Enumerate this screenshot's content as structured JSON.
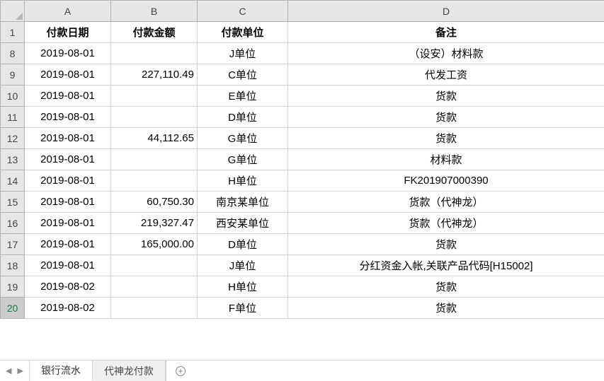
{
  "columns": [
    "A",
    "B",
    "C",
    "D"
  ],
  "header_row_index": "1",
  "headers": {
    "A": "付款日期",
    "B": "付款金额",
    "C": "付款单位",
    "D": "备注"
  },
  "rows": [
    {
      "idx": "8",
      "A": "2019-08-01",
      "B": "",
      "C": "J单位",
      "D": "（设安）材料款"
    },
    {
      "idx": "9",
      "A": "2019-08-01",
      "B": "227,110.49",
      "C": "C单位",
      "D": "代发工资"
    },
    {
      "idx": "10",
      "A": "2019-08-01",
      "B": "",
      "C": "E单位",
      "D": "货款"
    },
    {
      "idx": "11",
      "A": "2019-08-01",
      "B": "",
      "C": "D单位",
      "D": "货款"
    },
    {
      "idx": "12",
      "A": "2019-08-01",
      "B": "44,112.65",
      "C": "G单位",
      "D": "货款"
    },
    {
      "idx": "13",
      "A": "2019-08-01",
      "B": "",
      "C": "G单位",
      "D": "材料款"
    },
    {
      "idx": "14",
      "A": "2019-08-01",
      "B": "",
      "C": "H单位",
      "D": "FK201907000390"
    },
    {
      "idx": "15",
      "A": "2019-08-01",
      "B": "60,750.30",
      "C": "南京某单位",
      "D": "货款（代神龙）"
    },
    {
      "idx": "16",
      "A": "2019-08-01",
      "B": "219,327.47",
      "C": "西安某单位",
      "D": "货款（代神龙）"
    },
    {
      "idx": "17",
      "A": "2019-08-01",
      "B": "165,000.00",
      "C": "D单位",
      "D": "货款"
    },
    {
      "idx": "18",
      "A": "2019-08-01",
      "B": "",
      "C": "J单位",
      "D": "分红资金入帐,关联产品代码[H15002]"
    },
    {
      "idx": "19",
      "A": "2019-08-02",
      "B": "",
      "C": "H单位",
      "D": "货款"
    },
    {
      "idx": "20",
      "A": "2019-08-02",
      "B": "",
      "C": "F单位",
      "D": "货款"
    }
  ],
  "selected_row": "20",
  "tabs": [
    {
      "label": "银行流水",
      "active": true
    },
    {
      "label": "代神龙付款",
      "active": false
    }
  ],
  "colors": {
    "grid_border": "#d4d4d4",
    "header_bg": "#e6e6e6",
    "header_border": "#b0b0b0",
    "selected_row_header_text": "#167b3c"
  }
}
